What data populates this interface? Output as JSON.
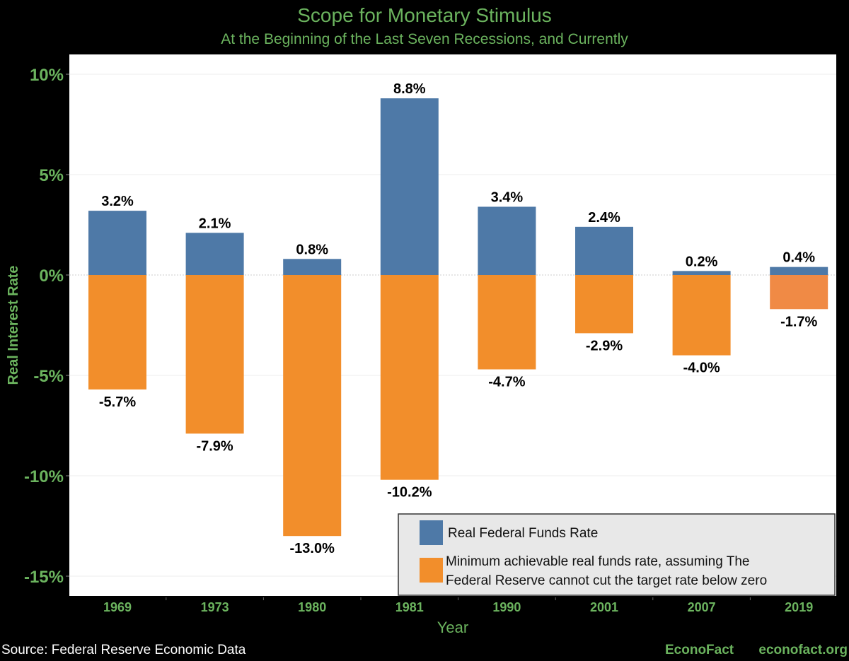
{
  "chart_data": {
    "type": "bar",
    "title": "Scope for Monetary Stimulus",
    "subtitle": "At the Beginning of the Last Seven Recessions, and Currently",
    "xlabel": "Year",
    "ylabel": "Real Interest Rate",
    "categories": [
      "1969",
      "1973",
      "1980",
      "1981",
      "1990",
      "2001",
      "2007",
      "2019"
    ],
    "series": [
      {
        "name": "Real Federal Funds Rate",
        "color": "#4E79A7",
        "values": [
          3.2,
          2.1,
          0.8,
          8.8,
          3.4,
          2.4,
          0.2,
          0.4
        ],
        "labels": [
          "3.2%",
          "2.1%",
          "0.8%",
          "8.8%",
          "3.4%",
          "2.4%",
          "0.2%",
          "0.4%"
        ]
      },
      {
        "name": "Minimum achievable real funds rate, assuming The Federal Reserve cannot cut the target rate below zero",
        "color": "#F28E2B",
        "values": [
          -5.7,
          -7.9,
          -13.0,
          -10.2,
          -4.7,
          -2.9,
          -4.0,
          -1.7
        ],
        "labels": [
          "-5.7%",
          "-7.9%",
          "-13.0%",
          "-10.2%",
          "-4.7%",
          "-2.9%",
          "-4.0%",
          "-1.7%"
        ]
      }
    ],
    "legend_lines": [
      "Minimum achievable real funds rate, assuming The",
      "Federal Reserve cannot cut the target rate below zero"
    ],
    "yticks": [
      10,
      5,
      0,
      -5,
      -10,
      -15
    ],
    "ytick_labels": [
      "10%",
      "5%",
      "0%",
      "-5%",
      "-10%",
      "-15%"
    ],
    "ylim": [
      -16,
      11
    ],
    "grid": true,
    "legend_position": "bottom-right",
    "accent_color": "#6BB35E"
  },
  "footer": {
    "source": "Source: Federal Reserve Economic Data",
    "brand": "EconoFact",
    "url": "econofact.org"
  }
}
